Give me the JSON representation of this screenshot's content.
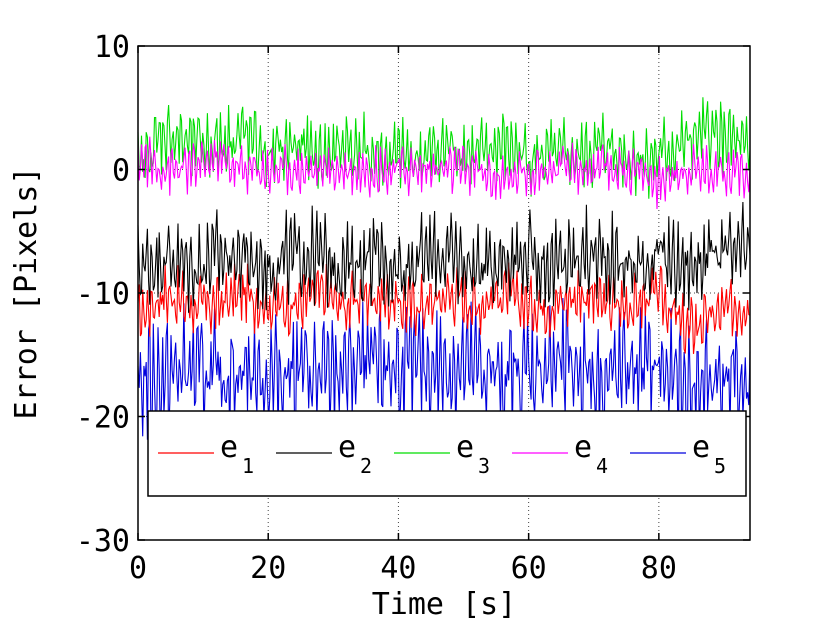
{
  "chart_data": {
    "type": "line",
    "title": "",
    "xlabel": "Time [s]",
    "ylabel": "Error [Pixels]",
    "xlim": [
      0,
      94
    ],
    "ylim": [
      -30,
      10
    ],
    "xticks": [
      0,
      20,
      40,
      60,
      80
    ],
    "yticks": [
      -30,
      -20,
      -10,
      0,
      10
    ],
    "xtick_labels": [
      "0",
      "20",
      "40",
      "60",
      "80"
    ],
    "ytick_labels": [
      "-30",
      "-20",
      "-10",
      "0",
      "10"
    ],
    "grid": true,
    "legend_placement": "bottom",
    "series": [
      {
        "name": "e",
        "subscript": "1",
        "color": "#ff0000",
        "x": [
          0,
          4,
          8,
          12,
          16,
          20,
          24,
          28,
          32,
          36,
          40,
          44,
          48,
          52,
          56,
          60,
          64,
          68,
          72,
          76,
          80,
          84,
          88,
          92,
          94
        ],
        "y": [
          -12,
          -10,
          -11,
          -11,
          -10,
          -11,
          -11,
          -10,
          -11,
          -10,
          -11,
          -11,
          -10,
          -11,
          -10,
          -11,
          -11,
          -10,
          -11,
          -11,
          -10,
          -13,
          -12,
          -11,
          -11
        ]
      },
      {
        "name": "e",
        "subscript": "2",
        "color": "#000000",
        "x": [
          0,
          4,
          8,
          12,
          16,
          20,
          24,
          28,
          32,
          36,
          40,
          44,
          48,
          52,
          56,
          60,
          64,
          68,
          72,
          76,
          80,
          84,
          88,
          92,
          94
        ],
        "y": [
          -8,
          -7,
          -8,
          -7,
          -7,
          -8,
          -7,
          -7,
          -8,
          -7,
          -8,
          -7,
          -7,
          -8,
          -7,
          -7,
          -8,
          -7,
          -7,
          -8,
          -7,
          -8,
          -7,
          -7,
          -6
        ]
      },
      {
        "name": "e",
        "subscript": "3",
        "color": "#00dd00",
        "x": [
          0,
          4,
          8,
          12,
          16,
          20,
          24,
          28,
          32,
          36,
          40,
          44,
          48,
          52,
          56,
          60,
          64,
          68,
          72,
          76,
          80,
          84,
          88,
          92,
          94
        ],
        "y": [
          0,
          3,
          2,
          2,
          3,
          1,
          2,
          1,
          2,
          1,
          1,
          1,
          2,
          1,
          2,
          1,
          1,
          1,
          2,
          1,
          1,
          2,
          3,
          2,
          1
        ]
      },
      {
        "name": "e",
        "subscript": "4",
        "color": "#ff00ff",
        "x": [
          0,
          4,
          8,
          12,
          16,
          20,
          24,
          28,
          32,
          36,
          40,
          44,
          48,
          52,
          56,
          60,
          64,
          68,
          72,
          76,
          80,
          84,
          88,
          92,
          94
        ],
        "y": [
          1,
          0,
          0,
          1,
          0,
          0,
          0,
          0,
          0,
          0,
          0,
          0,
          0,
          0,
          -1,
          0,
          0,
          0,
          0,
          0,
          -1,
          0,
          0,
          0,
          -1
        ]
      },
      {
        "name": "e",
        "subscript": "5",
        "color": "#0000dd",
        "x": [
          0,
          4,
          8,
          12,
          16,
          20,
          24,
          28,
          32,
          36,
          40,
          44,
          48,
          52,
          56,
          60,
          64,
          68,
          72,
          76,
          80,
          84,
          88,
          92,
          94
        ],
        "y": [
          -17,
          -17,
          -16,
          -17,
          -16,
          -17,
          -16,
          -17,
          -16,
          -16,
          -16,
          -16,
          -16,
          -16,
          -17,
          -16,
          -16,
          -16,
          -17,
          -16,
          -16,
          -18,
          -17,
          -17,
          -18
        ]
      }
    ]
  }
}
